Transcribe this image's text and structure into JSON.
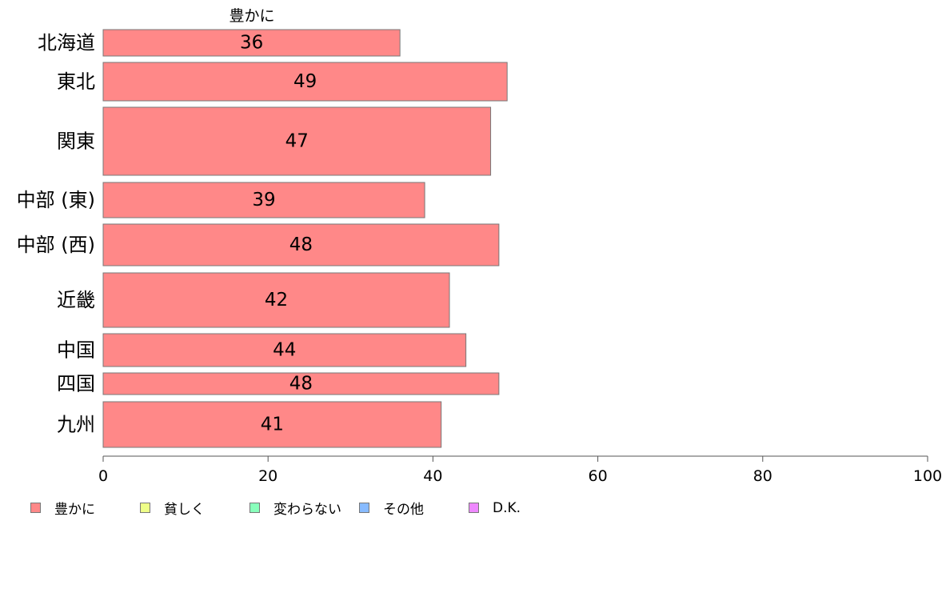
{
  "chart_data": {
    "type": "bar",
    "orientation": "horizontal",
    "title": "豊かに",
    "categories": [
      "北海道",
      "東北",
      "関東",
      "中部 (東)",
      "中部 (西)",
      "近畿",
      "中国",
      "四国",
      "九州"
    ],
    "series": [
      {
        "name": "豊かに",
        "values": [
          36,
          49,
          47,
          39,
          48,
          42,
          44,
          48,
          41
        ],
        "color": "#ff8888"
      }
    ],
    "value_labels": [
      "36",
      "49",
      "47",
      "39",
      "48",
      "42",
      "44",
      "48",
      "41"
    ],
    "xlim": [
      0,
      100
    ],
    "xticks": [
      0,
      20,
      40,
      60,
      80,
      100
    ],
    "xtick_labels": [
      "0",
      "20",
      "40",
      "60",
      "80",
      "100"
    ],
    "grid": false,
    "legend_position": "bottom-left"
  },
  "legend": {
    "items": [
      {
        "label": "豊かに",
        "color": "#ff8888"
      },
      {
        "label": "貧しく",
        "color": "#eeff88"
      },
      {
        "label": "変わらない",
        "color": "#88ffbb"
      },
      {
        "label": "その他",
        "color": "#88bbff"
      },
      {
        "label": "D.K.",
        "color": "#ee88ff"
      }
    ]
  }
}
